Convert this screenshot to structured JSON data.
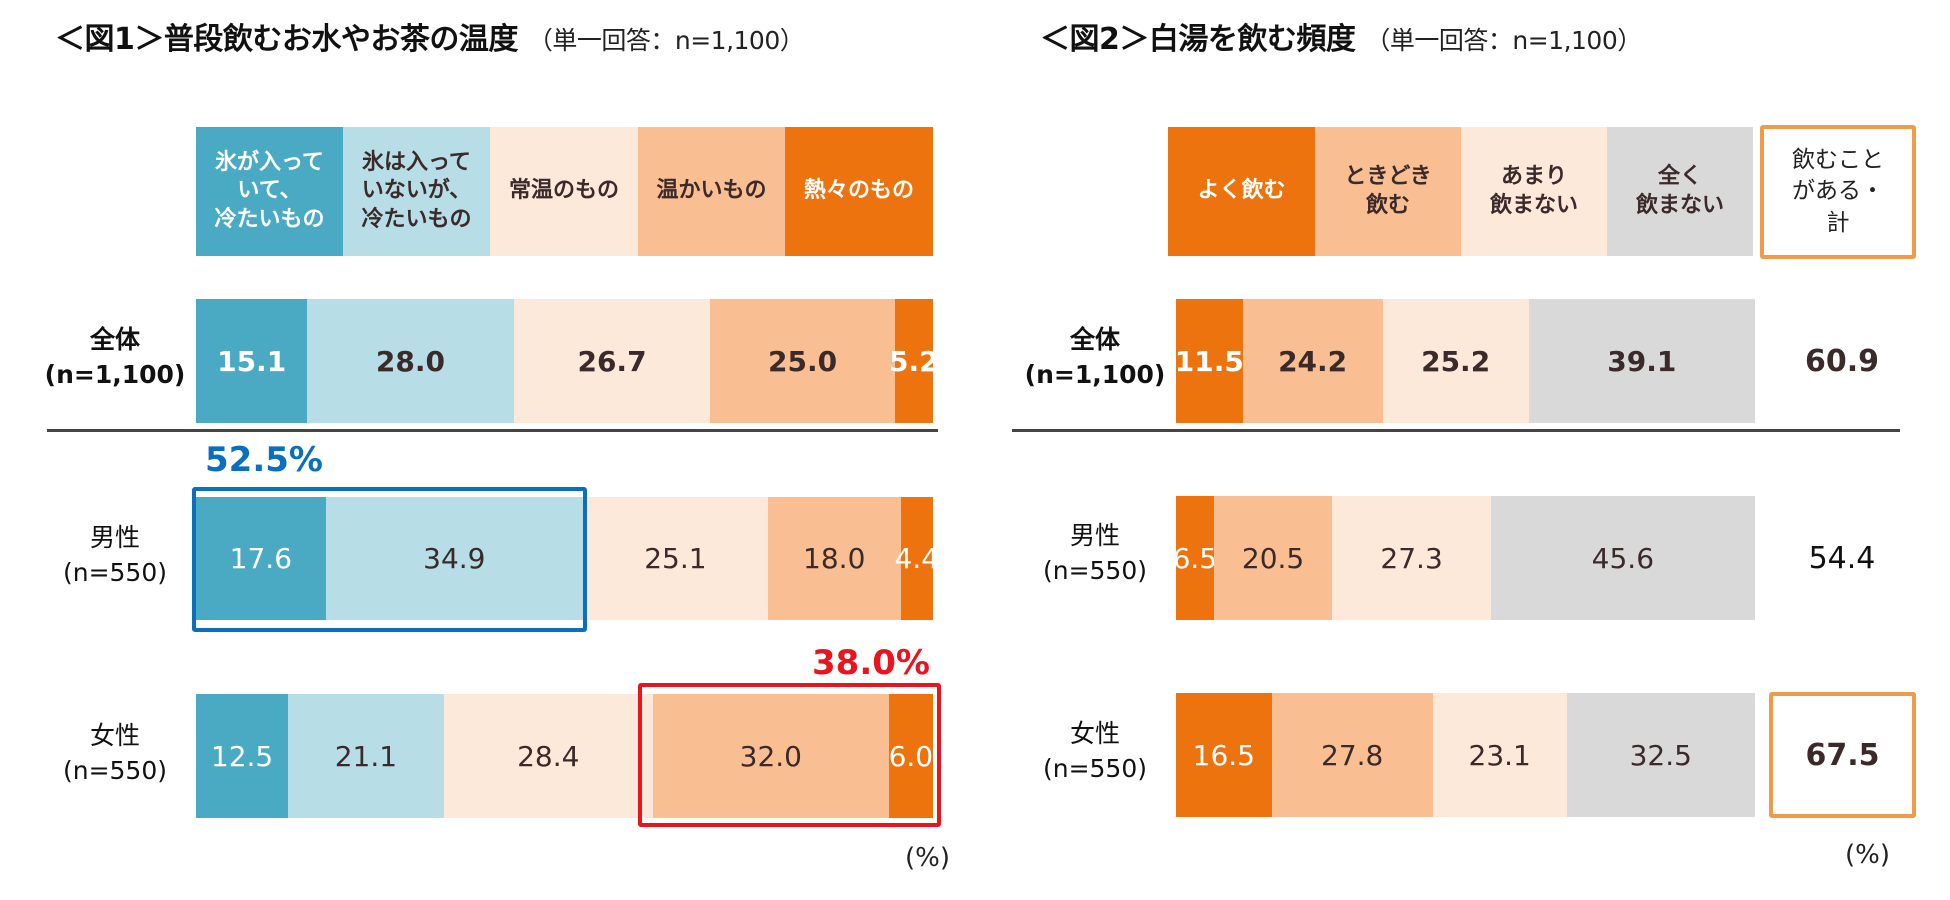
{
  "colors": {
    "fig1": [
      "#4aaac4",
      "#b7dde7",
      "#fde9da",
      "#f9be92",
      "#ed730f"
    ],
    "fig2": [
      "#ed730f",
      "#f9be92",
      "#fde9da",
      "#d9d9d9"
    ],
    "highlight_blue": "#0b6fbf",
    "highlight_red": "#e8141e",
    "total_border": "#f09a4a"
  },
  "fig1": {
    "title": "＜図1＞普段飲むお水やお茶の温度",
    "subtitle": "（単一回答：n=1,100）",
    "categories": [
      {
        "label": "氷が入って\nいて、\n冷たいもの",
        "text_color": "#ffffff"
      },
      {
        "label": "氷は入って\nいないが、\n冷たいもの",
        "text_color": "#3b2a2a"
      },
      {
        "label": "常温のもの",
        "text_color": "#3b2a2a"
      },
      {
        "label": "温かいもの",
        "text_color": "#3b2a2a"
      },
      {
        "label": "熱々のもの",
        "text_color": "#ffffff"
      }
    ],
    "rows": [
      {
        "label": "全体\n(n=1,100)",
        "bold": true,
        "values": [
          "15.1",
          "28.0",
          "26.7",
          "25.0",
          "5.2"
        ]
      },
      {
        "label": "男性\n(n=550)",
        "bold": false,
        "values": [
          "17.6",
          "34.9",
          "25.1",
          "18.0",
          "4.4"
        ]
      },
      {
        "label": "女性\n(n=550)",
        "bold": false,
        "values": [
          "12.5",
          "21.1",
          "28.4",
          "32.0",
          "6.0"
        ]
      }
    ],
    "highlights": [
      {
        "label": "52.5%",
        "row": 1,
        "from": 0,
        "to": 1,
        "color": "#0b6fbf"
      },
      {
        "label": "38.0%",
        "row": 2,
        "from": 3,
        "to": 4,
        "color": "#e8141e"
      }
    ],
    "unit": "(%)"
  },
  "fig2": {
    "title": "＜図2＞白湯を飲む頻度",
    "subtitle": "（単一回答：n=1,100）",
    "categories": [
      {
        "label": "よく飲む",
        "text_color": "#ffffff"
      },
      {
        "label": "ときどき\n飲む",
        "text_color": "#3b2a2a"
      },
      {
        "label": "あまり\n飲まない",
        "text_color": "#3b2a2a"
      },
      {
        "label": "全く\n飲まない",
        "text_color": "#3b2a2a"
      }
    ],
    "total_header": "飲むこと\nがある・\n計",
    "rows": [
      {
        "label": "全体\n(n=1,100)",
        "bold": true,
        "values": [
          "11.5",
          "24.2",
          "25.2",
          "39.1"
        ],
        "total": "60.9",
        "total_boxed": false
      },
      {
        "label": "男性\n(n=550)",
        "bold": false,
        "values": [
          "6.5",
          "20.5",
          "27.3",
          "45.6"
        ],
        "total": "54.4",
        "total_boxed": false
      },
      {
        "label": "女性\n(n=550)",
        "bold": false,
        "values": [
          "16.5",
          "27.8",
          "23.1",
          "32.5"
        ],
        "total": "67.5",
        "total_boxed": true
      }
    ],
    "unit": "(%)"
  },
  "chart_data": [
    {
      "type": "bar",
      "orientation": "horizontal",
      "stacked": true,
      "title": "＜図1＞普段飲むお水やお茶の温度（単一回答：n=1,100）",
      "categories": [
        "全体(n=1,100)",
        "男性(n=550)",
        "女性(n=550)"
      ],
      "series": [
        {
          "name": "氷が入っていて、冷たいもの",
          "values": [
            15.1,
            17.6,
            12.5
          ]
        },
        {
          "name": "氷は入っていないが、冷たいもの",
          "values": [
            28.0,
            34.9,
            21.1
          ]
        },
        {
          "name": "常温のもの",
          "values": [
            26.7,
            25.1,
            28.4
          ]
        },
        {
          "name": "温かいもの",
          "values": [
            25.0,
            18.0,
            32.0
          ]
        },
        {
          "name": "熱々のもの",
          "values": [
            5.2,
            4.4,
            6.0
          ]
        }
      ],
      "annotations": [
        {
          "text": "52.5%",
          "category": "男性(n=550)",
          "series": [
            "氷が入っていて、冷たいもの",
            "氷は入っていないが、冷たいもの"
          ]
        },
        {
          "text": "38.0%",
          "category": "女性(n=550)",
          "series": [
            "温かいもの",
            "熱々のもの"
          ]
        }
      ],
      "unit": "%",
      "xlim": [
        0,
        100
      ]
    },
    {
      "type": "bar",
      "orientation": "horizontal",
      "stacked": true,
      "title": "＜図2＞白湯を飲む頻度（単一回答：n=1,100）",
      "categories": [
        "全体(n=1,100)",
        "男性(n=550)",
        "女性(n=550)"
      ],
      "series": [
        {
          "name": "よく飲む",
          "values": [
            11.5,
            6.5,
            16.5
          ]
        },
        {
          "name": "ときどき飲む",
          "values": [
            24.2,
            20.5,
            27.8
          ]
        },
        {
          "name": "あまり飲まない",
          "values": [
            25.2,
            27.3,
            23.1
          ]
        },
        {
          "name": "全く飲まない",
          "values": [
            39.1,
            45.6,
            32.5
          ]
        }
      ],
      "totals": {
        "name": "飲むことがある・計",
        "values": [
          60.9,
          54.4,
          67.5
        ]
      },
      "unit": "%",
      "xlim": [
        0,
        100
      ]
    }
  ]
}
